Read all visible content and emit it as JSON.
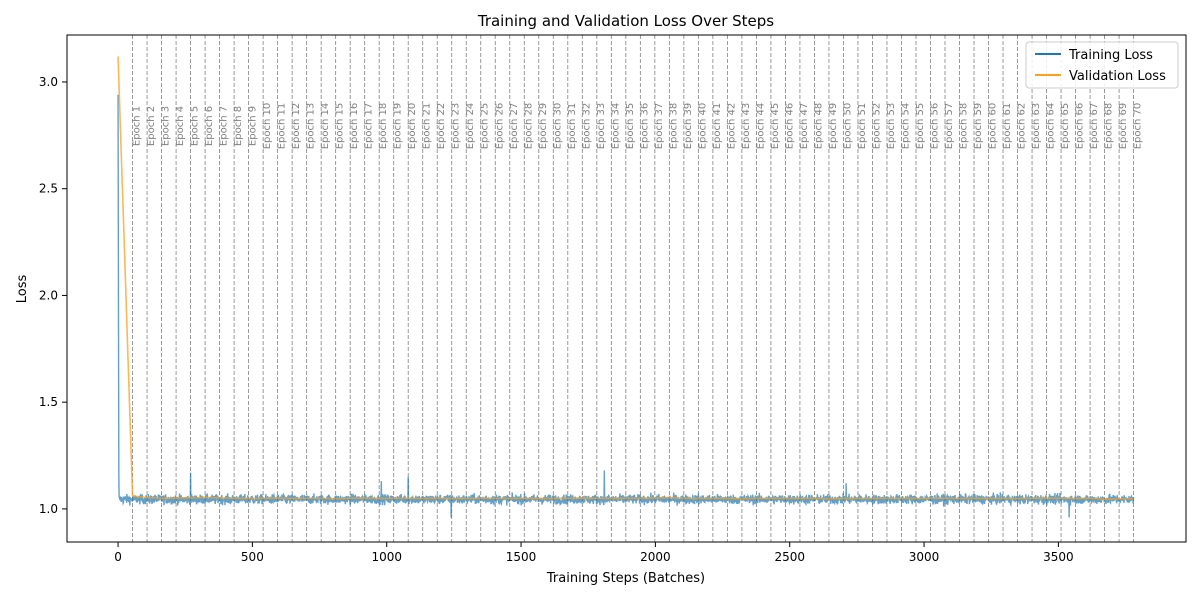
{
  "chart_data": {
    "type": "line",
    "title": "Training and Validation Loss Over Steps",
    "xlabel": "Training Steps (Batches)",
    "ylabel": "Loss",
    "xlim": [
      -190,
      3975
    ],
    "ylim": [
      0.845,
      3.22
    ],
    "x_ticks": [
      0,
      500,
      1000,
      1500,
      2000,
      2500,
      3000,
      3500
    ],
    "y_ticks": [
      1.0,
      1.5,
      2.0,
      2.5,
      3.0
    ],
    "y_tick_labels": [
      "1.0",
      "1.5",
      "2.0",
      "2.5",
      "3.0"
    ],
    "grid": false,
    "legend_position": "top-right",
    "steps_per_epoch": 54,
    "epoch_labels": [
      "Epoch 1",
      "Epoch 2",
      "Epoch 3",
      "Epoch 4",
      "Epoch 5",
      "Epoch 6",
      "Epoch 7",
      "Epoch 8",
      "Epoch 9",
      "Epoch 10",
      "Epoch 11",
      "Epoch 12",
      "Epoch 13",
      "Epoch 14",
      "Epoch 15",
      "Epoch 16",
      "Epoch 17",
      "Epoch 18",
      "Epoch 19",
      "Epoch 20",
      "Epoch 21",
      "Epoch 22",
      "Epoch 23",
      "Epoch 24",
      "Epoch 25",
      "Epoch 26",
      "Epoch 27",
      "Epoch 28",
      "Epoch 29",
      "Epoch 30",
      "Epoch 31",
      "Epoch 32",
      "Epoch 33",
      "Epoch 34",
      "Epoch 35",
      "Epoch 36",
      "Epoch 37",
      "Epoch 38",
      "Epoch 39",
      "Epoch 40",
      "Epoch 41",
      "Epoch 42",
      "Epoch 43",
      "Epoch 44",
      "Epoch 45",
      "Epoch 46",
      "Epoch 47",
      "Epoch 48",
      "Epoch 49",
      "Epoch 50",
      "Epoch 51",
      "Epoch 52",
      "Epoch 53",
      "Epoch 54",
      "Epoch 55",
      "Epoch 56",
      "Epoch 57",
      "Epoch 58",
      "Epoch 59",
      "Epoch 60",
      "Epoch 61",
      "Epoch 62",
      "Epoch 63",
      "Epoch 64",
      "Epoch 65",
      "Epoch 66",
      "Epoch 67",
      "Epoch 68",
      "Epoch 69",
      "Epoch 70"
    ],
    "epoch_line_color": "#808080",
    "series": [
      {
        "name": "Training Loss",
        "color": "#1f77b4",
        "opacity": 0.7,
        "summary": {
          "start_step": 0,
          "end_step": 3780,
          "initial": 2.94,
          "drops_to": 1.07,
          "steady_mean": 1.045,
          "noise": 0.025
        },
        "spikes": [
          [
            0,
            2.94
          ],
          [
            3,
            1.16
          ],
          [
            270,
            1.17
          ],
          [
            1810,
            1.18
          ],
          [
            980,
            1.13
          ],
          [
            1080,
            1.15
          ],
          [
            2710,
            1.12
          ],
          [
            1240,
            0.96
          ],
          [
            3540,
            0.96
          ]
        ]
      },
      {
        "name": "Validation Loss",
        "color": "#ff9f1c",
        "opacity": 0.75,
        "x": [
          0,
          54,
          108,
          162,
          216,
          270,
          324,
          378,
          432,
          486,
          540,
          594,
          648,
          702,
          756,
          810,
          864,
          918,
          972,
          1026,
          1080,
          1134,
          1188,
          1242,
          1296,
          1350,
          1404,
          1458,
          1512,
          1566,
          1620,
          1674,
          1728,
          1782,
          1836,
          1890,
          1944,
          1998,
          2052,
          2106,
          2160,
          2214,
          2268,
          2322,
          2376,
          2430,
          2484,
          2538,
          2592,
          2646,
          2700,
          2754,
          2808,
          2862,
          2916,
          2970,
          3024,
          3078,
          3132,
          3186,
          3240,
          3294,
          3348,
          3402,
          3456,
          3510,
          3564,
          3618,
          3672,
          3726,
          3780
        ],
        "y": [
          3.12,
          1.06,
          1.053,
          1.05,
          1.051,
          1.052,
          1.054,
          1.052,
          1.05,
          1.049,
          1.05,
          1.051,
          1.049,
          1.05,
          1.05,
          1.048,
          1.05,
          1.051,
          1.049,
          1.05,
          1.05,
          1.049,
          1.05,
          1.049,
          1.049,
          1.05,
          1.05,
          1.049,
          1.05,
          1.049,
          1.049,
          1.05,
          1.051,
          1.05,
          1.049,
          1.05,
          1.05,
          1.051,
          1.053,
          1.05,
          1.049,
          1.05,
          1.049,
          1.048,
          1.05,
          1.049,
          1.05,
          1.049,
          1.05,
          1.048,
          1.049,
          1.05,
          1.049,
          1.05,
          1.05,
          1.049,
          1.05,
          1.05,
          1.049,
          1.05,
          1.049,
          1.05,
          1.049,
          1.05,
          1.051,
          1.05,
          1.049,
          1.05,
          1.045,
          1.047,
          1.048
        ]
      }
    ]
  }
}
